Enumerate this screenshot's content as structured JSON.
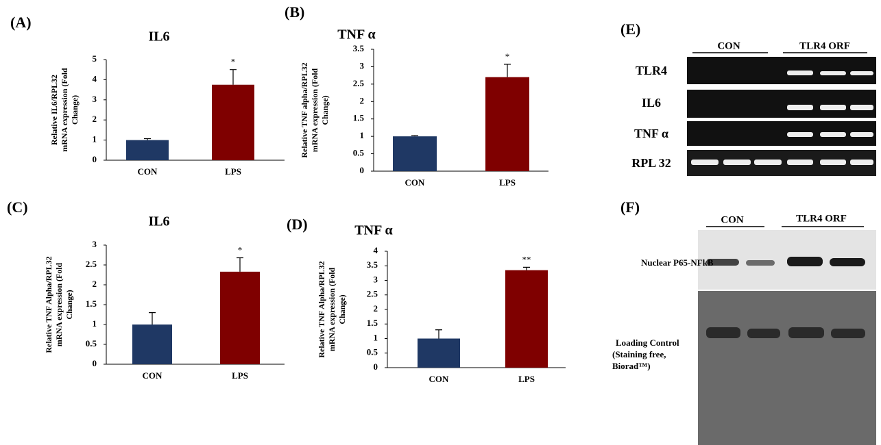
{
  "chart_data": [
    {
      "type": "bar",
      "panel": "(A)",
      "title": "IL6",
      "ylabel": [
        "Relative IL6/RPL32",
        "mRNA expression (Fold",
        "Change)"
      ],
      "categories": [
        "CON",
        "LPS"
      ],
      "values": [
        1.0,
        3.75
      ],
      "errors": [
        0.07,
        0.75
      ],
      "colors": [
        "#1f3864",
        "#7f0000"
      ],
      "annotation": "*",
      "ylim": [
        0,
        5
      ],
      "yticks": [
        0,
        1,
        2,
        3,
        4,
        5
      ]
    },
    {
      "type": "bar",
      "panel": "(B)",
      "title": "TNF α",
      "ylabel": [
        "Relative TNF alpha/RPL32",
        "mRNA expression (Fold",
        "Change)"
      ],
      "categories": [
        "CON",
        "LPS"
      ],
      "values": [
        1.0,
        2.7
      ],
      "errors": [
        0.02,
        0.37
      ],
      "colors": [
        "#1f3864",
        "#7f0000"
      ],
      "annotation": "*",
      "ylim": [
        0,
        3.5
      ],
      "yticks": [
        0,
        0.5,
        1,
        1.5,
        2,
        2.5,
        3,
        3.5
      ]
    },
    {
      "type": "bar",
      "panel": "(C)",
      "title": "IL6",
      "ylabel": [
        "Relative TNF Alpha/RPL32",
        "mRNA expression (Fold",
        "Change)"
      ],
      "categories": [
        "CON",
        "LPS"
      ],
      "values": [
        1.0,
        2.33
      ],
      "errors": [
        0.3,
        0.35
      ],
      "colors": [
        "#1f3864",
        "#7f0000"
      ],
      "annotation": "*",
      "ylim": [
        0,
        3
      ],
      "yticks": [
        0,
        0.5,
        1,
        1.5,
        2,
        2.5,
        3
      ]
    },
    {
      "type": "bar",
      "panel": "(D)",
      "title": "TNF α",
      "ylabel": [
        "Relative TNF Alpha/RPL32",
        "mRNA expression (Fold",
        "Change)"
      ],
      "categories": [
        "CON",
        "LPS"
      ],
      "values": [
        1.0,
        3.35
      ],
      "errors": [
        0.3,
        0.1
      ],
      "colors": [
        "#1f3864",
        "#7f0000"
      ],
      "annotation": "**",
      "ylim": [
        0,
        4
      ],
      "yticks": [
        0,
        0.5,
        1,
        1.5,
        2,
        2.5,
        3,
        3.5,
        4
      ]
    }
  ],
  "gel_e": {
    "panel": "(E)",
    "groups": [
      "CON",
      "TLR4 ORF"
    ],
    "rows": [
      "TLR4",
      "IL6",
      "TNF α",
      "RPL 32"
    ]
  },
  "blot_f": {
    "panel": "(F)",
    "groups": [
      "CON",
      "TLR4 ORF"
    ],
    "target": "Nuclear P65-NFkB",
    "loading": [
      "Loading Control",
      "(Staining free,",
      "Biorad™)"
    ]
  }
}
